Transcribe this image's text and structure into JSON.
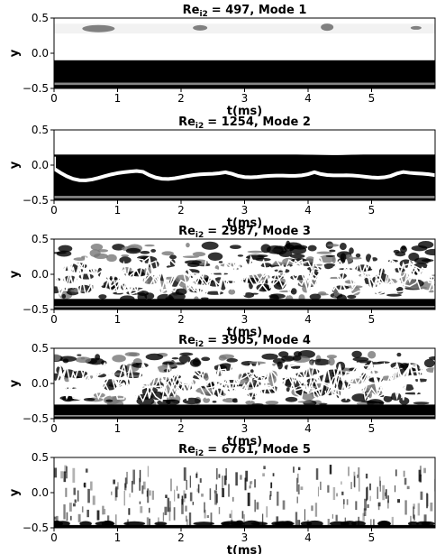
{
  "chart_data": [
    {
      "type": "image",
      "title": {
        "main": "Re",
        "sub": "i2",
        "rest": "= 497, Mode 1"
      },
      "xlabel": "t(ms)",
      "ylabel": "y",
      "xlim": [
        0,
        6
      ],
      "ylim": [
        -0.5,
        0.5
      ],
      "xticks": [
        0,
        1,
        2,
        3,
        4,
        5
      ],
      "yticks": [
        {
          "value": 0.5,
          "label": "0.5"
        },
        {
          "value": 0.0,
          "label": "0.0"
        },
        {
          "value": -0.5,
          "label": "−0.5"
        }
      ]
    },
    {
      "type": "image",
      "title": {
        "main": "Re",
        "sub": "i2",
        "rest": "= 1254, Mode 2"
      },
      "xlabel": "t(ms)",
      "ylabel": "y",
      "xlim": [
        0,
        6
      ],
      "ylim": [
        -0.5,
        0.5
      ],
      "xticks": [
        0,
        1,
        2,
        3,
        4,
        5
      ],
      "yticks": [
        {
          "value": 0.5,
          "label": "0.5"
        },
        {
          "value": 0.0,
          "label": "0.0"
        },
        {
          "value": -0.5,
          "label": "−0.5"
        }
      ]
    },
    {
      "type": "image",
      "title": {
        "main": "Re",
        "sub": "i2",
        "rest": "= 2987, Mode 3"
      },
      "xlabel": "t(ms)",
      "ylabel": "y",
      "xlim": [
        0,
        6
      ],
      "ylim": [
        -0.5,
        0.5
      ],
      "xticks": [
        0,
        1,
        2,
        3,
        4,
        5
      ],
      "yticks": [
        {
          "value": 0.5,
          "label": "0.5"
        },
        {
          "value": 0.0,
          "label": "0.0"
        },
        {
          "value": -0.5,
          "label": "−0.5"
        }
      ]
    },
    {
      "type": "image",
      "title": {
        "main": "Re",
        "sub": "i2",
        "rest": "= 3905, Mode 4"
      },
      "xlabel": "t(ms)",
      "ylabel": "y",
      "xlim": [
        0,
        6
      ],
      "ylim": [
        -0.5,
        0.5
      ],
      "xticks": [
        0,
        1,
        2,
        3,
        4,
        5
      ],
      "yticks": [
        {
          "value": 0.5,
          "label": "0.5"
        },
        {
          "value": 0.0,
          "label": "0.0"
        },
        {
          "value": -0.5,
          "label": "−0.5"
        }
      ]
    },
    {
      "type": "image",
      "title": {
        "main": "Re",
        "sub": "i2",
        "rest": "= 6761, Mode 5"
      },
      "xlabel": "t(ms)",
      "ylabel": "y",
      "xlim": [
        0,
        6
      ],
      "ylim": [
        -0.5,
        0.5
      ],
      "xticks": [
        0,
        1,
        2,
        3,
        4,
        5
      ],
      "yticks": [
        {
          "value": 0.5,
          "label": "0.5"
        },
        {
          "value": 0.0,
          "label": "0.0"
        },
        {
          "value": -0.5,
          "label": "−0.5"
        }
      ]
    }
  ]
}
